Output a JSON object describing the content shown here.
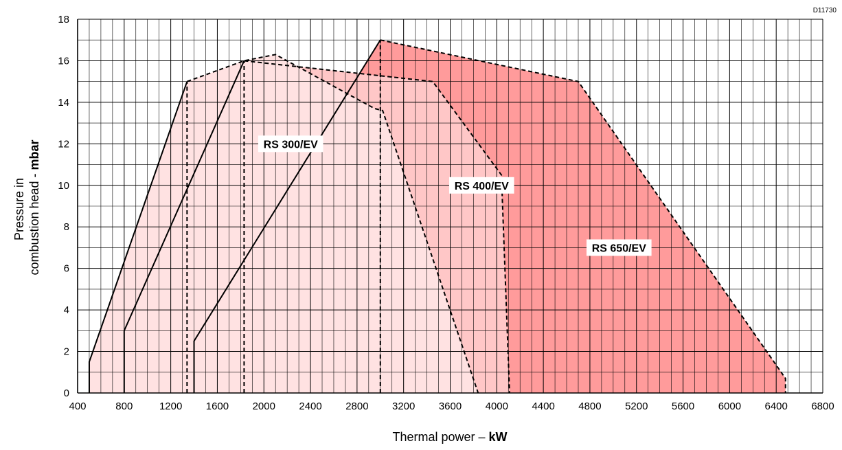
{
  "reference_code": "D11730",
  "chart_data": {
    "type": "area",
    "xlabel": "Thermal power – ",
    "xlabel_unit": "kW",
    "ylabel_line1": "Pressure in",
    "ylabel_line2": "combustion head - ",
    "ylabel_unit": "mbar",
    "xlim": [
      400,
      6800
    ],
    "ylim": [
      0,
      18
    ],
    "x_ticks": [
      400,
      800,
      1200,
      1600,
      2000,
      2400,
      2800,
      3200,
      3600,
      4000,
      4400,
      4800,
      5200,
      5600,
      6000,
      6400,
      6800
    ],
    "y_ticks": [
      0,
      2,
      4,
      6,
      8,
      10,
      12,
      14,
      16,
      18
    ],
    "grid": true,
    "series": [
      {
        "name": "RS 650/EV",
        "color": "#ff9b9b",
        "points": [
          [
            1400,
            0
          ],
          [
            1400,
            2.5
          ],
          [
            3000,
            17
          ],
          [
            4700,
            15
          ],
          [
            6480,
            0.7
          ],
          [
            6480,
            0
          ]
        ],
        "label_at": [
          5050,
          7
        ]
      },
      {
        "name": "RS 400/EV",
        "color": "#ffc7c7",
        "points": [
          [
            800,
            0
          ],
          [
            800,
            3
          ],
          [
            1830,
            16
          ],
          [
            3450,
            15
          ],
          [
            4040,
            10.5
          ],
          [
            4110,
            0
          ]
        ],
        "label_at": [
          3870,
          10
        ]
      },
      {
        "name": "RS 300/EV",
        "color": "#ffe2e2",
        "points": [
          [
            500,
            0
          ],
          [
            500,
            1.5
          ],
          [
            1340,
            15
          ],
          [
            1830,
            16
          ],
          [
            2100,
            16.3
          ],
          [
            2950,
            13.7
          ],
          [
            3020,
            13.6
          ],
          [
            3840,
            0
          ]
        ],
        "label_at": [
          2230,
          12
        ]
      }
    ],
    "vertical_dashed_lines": [
      [
        1340,
        15
      ],
      [
        1830,
        16
      ],
      [
        3000,
        17
      ]
    ]
  }
}
